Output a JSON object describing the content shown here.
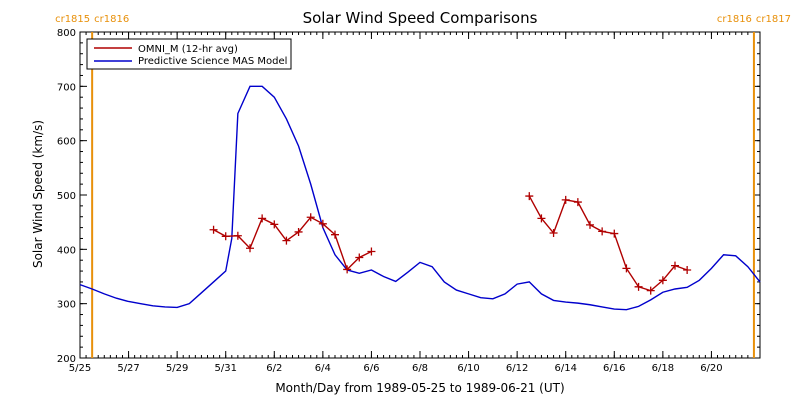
{
  "chart_data": {
    "type": "line",
    "title": "Solar Wind Speed Comparisons",
    "xlabel": "Month/Day from 1989-05-25 to 1989-06-21 (UT)",
    "ylabel": "Solar Wind Speed (km/s)",
    "xlim": [
      "1989-05-25",
      "1989-06-22"
    ],
    "ylim": [
      200,
      800
    ],
    "x_tick_labels": [
      "5/25",
      "5/27",
      "5/29",
      "5/31",
      "6/2",
      "6/4",
      "6/6",
      "6/8",
      "6/10",
      "6/12",
      "6/14",
      "6/16",
      "6/18",
      "6/20"
    ],
    "y_tick_labels": [
      "200",
      "300",
      "400",
      "500",
      "600",
      "700",
      "800"
    ],
    "legend_position": "top-left",
    "carrington_markers": [
      {
        "x": "1989-05-25T12:00",
        "label_left": "cr1815",
        "label_right": "cr1816",
        "color": "#e8900a"
      },
      {
        "x": "1989-06-21T18:00",
        "label_left": "cr1816",
        "label_right": "cr1817",
        "color": "#e8900a"
      }
    ],
    "series": [
      {
        "name": "OMNI_M (12-hr avg)",
        "color": "#b00000",
        "marker": "+",
        "segments": [
          [
            [
              "1989-05-30T12:00",
              436
            ],
            [
              "1989-05-31T00:00",
              424
            ],
            [
              "1989-05-31T12:00",
              425
            ],
            [
              "1989-06-01T00:00",
              402
            ],
            [
              "1989-06-01T12:00",
              457
            ],
            [
              "1989-06-02T00:00",
              446
            ],
            [
              "1989-06-02T12:00",
              416
            ],
            [
              "1989-06-03T00:00",
              432
            ],
            [
              "1989-06-03T12:00",
              459
            ],
            [
              "1989-06-04T00:00",
              447
            ],
            [
              "1989-06-04T12:00",
              427
            ],
            [
              "1989-06-05T00:00",
              363
            ],
            [
              "1989-06-05T12:00",
              385
            ],
            [
              "1989-06-06T00:00",
              396
            ]
          ],
          [
            [
              "1989-06-12T12:00",
              498
            ],
            [
              "1989-06-13T00:00",
              457
            ],
            [
              "1989-06-13T12:00",
              430
            ],
            [
              "1989-06-14T00:00",
              491
            ],
            [
              "1989-06-14T12:00",
              487
            ],
            [
              "1989-06-15T00:00",
              445
            ],
            [
              "1989-06-15T12:00",
              433
            ],
            [
              "1989-06-16T00:00",
              429
            ],
            [
              "1989-06-16T12:00",
              365
            ],
            [
              "1989-06-17T00:00",
              331
            ],
            [
              "1989-06-17T12:00",
              324
            ],
            [
              "1989-06-18T00:00",
              343
            ],
            [
              "1989-06-18T12:00",
              370
            ],
            [
              "1989-06-19T00:00",
              362
            ]
          ]
        ]
      },
      {
        "name": "Predictive Science MAS Model",
        "color": "#0000cc",
        "points": [
          [
            "1989-05-25T00:00",
            335
          ],
          [
            "1989-05-25T12:00",
            327
          ],
          [
            "1989-05-26T00:00",
            318
          ],
          [
            "1989-05-26T12:00",
            310
          ],
          [
            "1989-05-27T00:00",
            304
          ],
          [
            "1989-05-27T12:00",
            300
          ],
          [
            "1989-05-28T00:00",
            296
          ],
          [
            "1989-05-28T12:00",
            294
          ],
          [
            "1989-05-29T00:00",
            293
          ],
          [
            "1989-05-29T12:00",
            300
          ],
          [
            "1989-05-30T00:00",
            320
          ],
          [
            "1989-05-30T12:00",
            340
          ],
          [
            "1989-05-31T00:00",
            360
          ],
          [
            "1989-05-31T06:00",
            420
          ],
          [
            "1989-05-31T12:00",
            650
          ],
          [
            "1989-06-01T00:00",
            700
          ],
          [
            "1989-06-01T12:00",
            700
          ],
          [
            "1989-06-02T00:00",
            680
          ],
          [
            "1989-06-02T12:00",
            640
          ],
          [
            "1989-06-03T00:00",
            590
          ],
          [
            "1989-06-03T12:00",
            520
          ],
          [
            "1989-06-04T00:00",
            440
          ],
          [
            "1989-06-04T12:00",
            390
          ],
          [
            "1989-06-05T00:00",
            362
          ],
          [
            "1989-06-05T12:00",
            356
          ],
          [
            "1989-06-06T00:00",
            362
          ],
          [
            "1989-06-06T12:00",
            350
          ],
          [
            "1989-06-07T00:00",
            341
          ],
          [
            "1989-06-07T12:00",
            358
          ],
          [
            "1989-06-08T00:00",
            376
          ],
          [
            "1989-06-08T12:00",
            368
          ],
          [
            "1989-06-09T00:00",
            340
          ],
          [
            "1989-06-09T12:00",
            325
          ],
          [
            "1989-06-10T00:00",
            318
          ],
          [
            "1989-06-10T12:00",
            311
          ],
          [
            "1989-06-11T00:00",
            309
          ],
          [
            "1989-06-11T12:00",
            318
          ],
          [
            "1989-06-12T00:00",
            336
          ],
          [
            "1989-06-12T12:00",
            340
          ],
          [
            "1989-06-13T00:00",
            318
          ],
          [
            "1989-06-13T12:00",
            306
          ],
          [
            "1989-06-14T00:00",
            303
          ],
          [
            "1989-06-14T12:00",
            301
          ],
          [
            "1989-06-15T00:00",
            298
          ],
          [
            "1989-06-15T12:00",
            294
          ],
          [
            "1989-06-16T00:00",
            290
          ],
          [
            "1989-06-16T12:00",
            289
          ],
          [
            "1989-06-17T00:00",
            295
          ],
          [
            "1989-06-17T12:00",
            307
          ],
          [
            "1989-06-18T00:00",
            321
          ],
          [
            "1989-06-18T12:00",
            327
          ],
          [
            "1989-06-19T00:00",
            330
          ],
          [
            "1989-06-19T12:00",
            343
          ],
          [
            "1989-06-20T00:00",
            365
          ],
          [
            "1989-06-20T12:00",
            390
          ],
          [
            "1989-06-21T00:00",
            388
          ],
          [
            "1989-06-21T12:00",
            368
          ],
          [
            "1989-06-22T00:00",
            340
          ]
        ]
      }
    ]
  }
}
